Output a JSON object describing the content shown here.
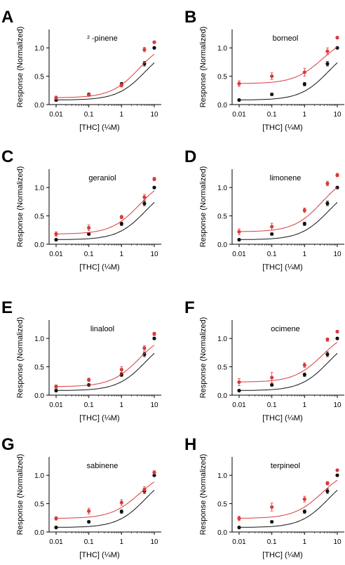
{
  "figure": {
    "y_axis_label": "Response (Normalized)",
    "x_axis_label": "[THC] (¼M)",
    "x_tick_labels": [
      "0.01",
      "0.1",
      "1",
      "10"
    ],
    "y_tick_labels": [
      "0.0",
      "0.5",
      "1.0"
    ],
    "colors": {
      "thc_alone": "#111111",
      "combination": "#d93a3a"
    }
  },
  "chart_data": [
    {
      "type": "scatter",
      "panel_letter": "A",
      "title": "² -pinene",
      "xlabel": "[THC] (¼M)",
      "ylabel": "Response (Normalized)",
      "x_scale": "log",
      "xlim": [
        0.01,
        10
      ],
      "ylim": [
        0,
        1.25
      ],
      "x": [
        0.01,
        0.1,
        1,
        5,
        10
      ],
      "series": [
        {
          "values": [
            0.08,
            0.18,
            0.36,
            0.72,
            1.0
          ],
          "errors": [
            0.02,
            0.02,
            0.03,
            0.04,
            0.02
          ]
        },
        {
          "values": [
            0.12,
            0.17,
            0.34,
            0.97,
            1.1
          ],
          "errors": [
            0.03,
            0.02,
            0.03,
            0.04,
            0.02
          ]
        }
      ]
    },
    {
      "type": "scatter",
      "panel_letter": "B",
      "title": "borneol",
      "xlabel": "[THC] (¼M)",
      "ylabel": "Response (Normalized)",
      "x_scale": "log",
      "xlim": [
        0.01,
        10
      ],
      "ylim": [
        0,
        1.25
      ],
      "x": [
        0.01,
        0.1,
        1,
        5,
        10
      ],
      "series": [
        {
          "values": [
            0.08,
            0.18,
            0.36,
            0.72,
            1.0
          ],
          "errors": [
            0.02,
            0.02,
            0.03,
            0.04,
            0.02
          ]
        },
        {
          "values": [
            0.37,
            0.5,
            0.57,
            0.94,
            1.18
          ],
          "errors": [
            0.05,
            0.06,
            0.07,
            0.06,
            0.02
          ]
        }
      ]
    },
    {
      "type": "scatter",
      "panel_letter": "C",
      "title": "geraniol",
      "xlabel": "[THC] (¼M)",
      "ylabel": "Response (Normalized)",
      "x_scale": "log",
      "xlim": [
        0.01,
        10
      ],
      "ylim": [
        0,
        1.25
      ],
      "x": [
        0.01,
        0.1,
        1,
        5,
        10
      ],
      "series": [
        {
          "values": [
            0.08,
            0.18,
            0.36,
            0.72,
            1.0
          ],
          "errors": [
            0.02,
            0.02,
            0.03,
            0.04,
            0.02
          ]
        },
        {
          "values": [
            0.18,
            0.29,
            0.48,
            0.83,
            1.15
          ],
          "errors": [
            0.04,
            0.05,
            0.03,
            0.05,
            0.03
          ]
        }
      ]
    },
    {
      "type": "scatter",
      "panel_letter": "D",
      "title": "limonene",
      "xlabel": "[THC] (¼M)",
      "ylabel": "Response (Normalized)",
      "x_scale": "log",
      "xlim": [
        0.01,
        10
      ],
      "ylim": [
        0,
        1.25
      ],
      "x": [
        0.01,
        0.1,
        1,
        5,
        10
      ],
      "series": [
        {
          "values": [
            0.08,
            0.18,
            0.36,
            0.72,
            1.0
          ],
          "errors": [
            0.02,
            0.02,
            0.03,
            0.04,
            0.02
          ]
        },
        {
          "values": [
            0.22,
            0.31,
            0.6,
            1.07,
            1.22
          ],
          "errors": [
            0.05,
            0.06,
            0.04,
            0.04,
            0.03
          ]
        }
      ]
    },
    {
      "type": "scatter",
      "panel_letter": "E",
      "title": "linalool",
      "xlabel": "[THC] (¼M)",
      "ylabel": "Response (Normalized)",
      "x_scale": "log",
      "xlim": [
        0.01,
        10
      ],
      "ylim": [
        0,
        1.25
      ],
      "x": [
        0.01,
        0.1,
        1,
        5,
        10
      ],
      "series": [
        {
          "values": [
            0.08,
            0.18,
            0.36,
            0.72,
            1.0
          ],
          "errors": [
            0.02,
            0.02,
            0.03,
            0.04,
            0.02
          ]
        },
        {
          "values": [
            0.15,
            0.27,
            0.45,
            0.83,
            1.08
          ],
          "errors": [
            0.03,
            0.03,
            0.05,
            0.04,
            0.03
          ]
        }
      ]
    },
    {
      "type": "scatter",
      "panel_letter": "F",
      "title": "ocimene",
      "xlabel": "[THC] (¼M)",
      "ylabel": "Response (Normalized)",
      "x_scale": "log",
      "xlim": [
        0.01,
        10
      ],
      "ylim": [
        0,
        1.25
      ],
      "x": [
        0.01,
        0.1,
        1,
        5,
        10
      ],
      "series": [
        {
          "values": [
            0.08,
            0.18,
            0.36,
            0.72,
            1.0
          ],
          "errors": [
            0.02,
            0.02,
            0.03,
            0.04,
            0.02
          ]
        },
        {
          "values": [
            0.23,
            0.31,
            0.53,
            0.98,
            1.12
          ],
          "errors": [
            0.06,
            0.09,
            0.04,
            0.03,
            0.02
          ]
        }
      ]
    },
    {
      "type": "scatter",
      "panel_letter": "G",
      "title": "sabinene",
      "xlabel": "[THC] (¼M)",
      "ylabel": "Response (Normalized)",
      "x_scale": "log",
      "xlim": [
        0.01,
        10
      ],
      "ylim": [
        0,
        1.25
      ],
      "x": [
        0.01,
        0.1,
        1,
        5,
        10
      ],
      "series": [
        {
          "values": [
            0.08,
            0.18,
            0.36,
            0.72,
            1.0
          ],
          "errors": [
            0.02,
            0.02,
            0.03,
            0.04,
            0.02
          ]
        },
        {
          "values": [
            0.24,
            0.37,
            0.52,
            0.75,
            1.05
          ],
          "errors": [
            0.03,
            0.05,
            0.05,
            0.05,
            0.03
          ]
        }
      ]
    },
    {
      "type": "scatter",
      "panel_letter": "H",
      "title": "terpineol",
      "xlabel": "[THC] (¼M)",
      "ylabel": "Response (Normalized)",
      "x_scale": "log",
      "xlim": [
        0.01,
        10
      ],
      "ylim": [
        0,
        1.25
      ],
      "x": [
        0.01,
        0.1,
        1,
        5,
        10
      ],
      "series": [
        {
          "values": [
            0.08,
            0.18,
            0.36,
            0.72,
            1.0
          ],
          "errors": [
            0.02,
            0.02,
            0.03,
            0.04,
            0.02
          ]
        },
        {
          "values": [
            0.24,
            0.44,
            0.58,
            0.86,
            1.09
          ],
          "errors": [
            0.04,
            0.07,
            0.05,
            0.03,
            0.02
          ]
        }
      ]
    }
  ]
}
